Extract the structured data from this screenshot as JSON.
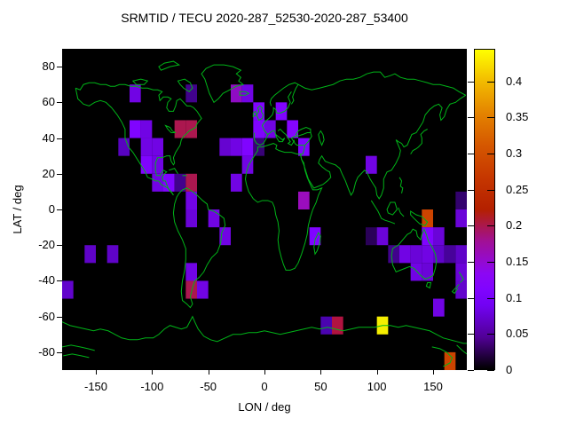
{
  "title": "SRMTID / TECU 2020-287_52530-2020-287_53400",
  "chart_data": {
    "type": "heatmap",
    "title": "SRMTID / TECU 2020-287_52530-2020-287_53400",
    "xlabel": "LON / deg",
    "ylabel": "LAT / deg",
    "xlim": [
      -180,
      180
    ],
    "ylim": [
      -90,
      90
    ],
    "xticks": [
      -150,
      -100,
      -50,
      0,
      50,
      100,
      150
    ],
    "yticks": [
      80,
      60,
      40,
      20,
      0,
      -20,
      -40,
      -60,
      -80
    ],
    "grid": false,
    "legend_position": "colorbar-right",
    "background_color": "#000000",
    "coastline_color": "#00b418",
    "bin_size_deg": 10,
    "colorbar": {
      "min": 0,
      "max": 0.445,
      "ticks": [
        0,
        0.05,
        0.1,
        0.15,
        0.2,
        0.25,
        0.3,
        0.35,
        0.4
      ],
      "tick_labels": [
        "0",
        "0.05",
        "0.1",
        "0.15",
        "0.2",
        "0.25",
        "0.3",
        "0.35",
        "0.4"
      ],
      "palette": "gnuplot pm3d default (black-violet-magenta-red-orange-yellow)",
      "gradient_stops": [
        {
          "at": 0.0,
          "color": "#000000"
        },
        {
          "at": 0.1,
          "color": "#510096"
        },
        {
          "at": 0.2,
          "color": "#7202f3"
        },
        {
          "at": 0.25,
          "color": "#8004ff"
        },
        {
          "at": 0.3,
          "color": "#8c07f3"
        },
        {
          "at": 0.4,
          "color": "#a11096"
        },
        {
          "at": 0.5,
          "color": "#b42000"
        },
        {
          "at": 0.6,
          "color": "#c63700"
        },
        {
          "at": 0.7,
          "color": "#d55700"
        },
        {
          "at": 0.8,
          "color": "#e48300"
        },
        {
          "at": 0.9,
          "color": "#f2ba00"
        },
        {
          "at": 1.0,
          "color": "#ffff00"
        }
      ]
    },
    "cells": [
      {
        "lon": -120,
        "lat": 60,
        "value": 0.1,
        "color": "#7104e4"
      },
      {
        "lon": -70,
        "lat": 60,
        "value": 0.06,
        "color": "#41028c"
      },
      {
        "lon": -30,
        "lat": 60,
        "value": 0.14,
        "color": "#8f0cc4"
      },
      {
        "lon": -20,
        "lat": 60,
        "value": 0.1,
        "color": "#7104e4"
      },
      {
        "lon": -10,
        "lat": 50,
        "value": 0.11,
        "color": "#8004ff"
      },
      {
        "lon": 10,
        "lat": 50,
        "value": 0.11,
        "color": "#8004ff"
      },
      {
        "lon": -120,
        "lat": 40,
        "value": 0.11,
        "color": "#8004ff"
      },
      {
        "lon": -110,
        "lat": 40,
        "value": 0.1,
        "color": "#7104e4"
      },
      {
        "lon": -80,
        "lat": 40,
        "value": 0.2,
        "color": "#ab174f"
      },
      {
        "lon": -70,
        "lat": 40,
        "value": 0.2,
        "color": "#ab174f"
      },
      {
        "lon": -10,
        "lat": 40,
        "value": 0.11,
        "color": "#8004ff"
      },
      {
        "lon": 0,
        "lat": 40,
        "value": 0.1,
        "color": "#7104e4"
      },
      {
        "lon": 20,
        "lat": 40,
        "value": 0.115,
        "color": "#8505ff"
      },
      {
        "lon": -130,
        "lat": 30,
        "value": 0.08,
        "color": "#5803c0"
      },
      {
        "lon": -110,
        "lat": 30,
        "value": 0.1,
        "color": "#7104e4"
      },
      {
        "lon": -100,
        "lat": 30,
        "value": 0.1,
        "color": "#7104e4"
      },
      {
        "lon": -40,
        "lat": 30,
        "value": 0.09,
        "color": "#6604d0"
      },
      {
        "lon": -30,
        "lat": 30,
        "value": 0.1,
        "color": "#7104e4"
      },
      {
        "lon": -20,
        "lat": 30,
        "value": 0.11,
        "color": "#8004ff"
      },
      {
        "lon": -10,
        "lat": 30,
        "value": 0.05,
        "color": "#380277"
      },
      {
        "lon": 30,
        "lat": 30,
        "value": 0.11,
        "color": "#8004ff"
      },
      {
        "lon": -110,
        "lat": 20,
        "value": 0.11,
        "color": "#8004ff"
      },
      {
        "lon": -100,
        "lat": 20,
        "value": 0.1,
        "color": "#7104e4"
      },
      {
        "lon": -20,
        "lat": 20,
        "value": 0.1,
        "color": "#7104e4"
      },
      {
        "lon": 90,
        "lat": 20,
        "value": 0.1,
        "color": "#7104e4"
      },
      {
        "lon": -100,
        "lat": 10,
        "value": 0.1,
        "color": "#7104e4"
      },
      {
        "lon": -90,
        "lat": 10,
        "value": 0.11,
        "color": "#8004ff"
      },
      {
        "lon": -80,
        "lat": 10,
        "value": 0.06,
        "color": "#41028c"
      },
      {
        "lon": -70,
        "lat": 10,
        "value": 0.2,
        "color": "#ab174f"
      },
      {
        "lon": -30,
        "lat": 10,
        "value": 0.1,
        "color": "#7104e4"
      },
      {
        "lon": -70,
        "lat": 0,
        "value": 0.1,
        "color": "#7104e4"
      },
      {
        "lon": 30,
        "lat": 0,
        "value": 0.15,
        "color": "#9b0dbe"
      },
      {
        "lon": 170,
        "lat": 0,
        "value": 0.045,
        "color": "#33026e"
      },
      {
        "lon": -70,
        "lat": -10,
        "value": 0.095,
        "color": "#6a04d8"
      },
      {
        "lon": -50,
        "lat": -10,
        "value": 0.1,
        "color": "#7104e4"
      },
      {
        "lon": 140,
        "lat": -10,
        "value": 0.28,
        "color": "#cc4400"
      },
      {
        "lon": 170,
        "lat": -10,
        "value": 0.095,
        "color": "#6a04d8"
      },
      {
        "lon": -40,
        "lat": -20,
        "value": 0.1,
        "color": "#7104e4"
      },
      {
        "lon": 40,
        "lat": -20,
        "value": 0.11,
        "color": "#8004ff"
      },
      {
        "lon": 90,
        "lat": -20,
        "value": 0.035,
        "color": "#2a0158"
      },
      {
        "lon": 100,
        "lat": -20,
        "value": 0.095,
        "color": "#6a04d8"
      },
      {
        "lon": 140,
        "lat": -20,
        "value": 0.11,
        "color": "#8004ff"
      },
      {
        "lon": 150,
        "lat": -20,
        "value": 0.095,
        "color": "#6a04d8"
      },
      {
        "lon": -160,
        "lat": -30,
        "value": 0.085,
        "color": "#5f03c8"
      },
      {
        "lon": -140,
        "lat": -30,
        "value": 0.085,
        "color": "#5f03c8"
      },
      {
        "lon": 110,
        "lat": -30,
        "value": 0.06,
        "color": "#41028c"
      },
      {
        "lon": 120,
        "lat": -30,
        "value": 0.1,
        "color": "#7104e4"
      },
      {
        "lon": 130,
        "lat": -30,
        "value": 0.095,
        "color": "#6a04d8"
      },
      {
        "lon": 140,
        "lat": -30,
        "value": 0.1,
        "color": "#7104e4"
      },
      {
        "lon": 150,
        "lat": -30,
        "value": 0.085,
        "color": "#5f03c8"
      },
      {
        "lon": 160,
        "lat": -30,
        "value": 0.065,
        "color": "#47029a"
      },
      {
        "lon": 170,
        "lat": -30,
        "value": 0.085,
        "color": "#5f03c8"
      },
      {
        "lon": -70,
        "lat": -40,
        "value": 0.1,
        "color": "#7104e4"
      },
      {
        "lon": 130,
        "lat": -40,
        "value": 0.1,
        "color": "#7104e4"
      },
      {
        "lon": 140,
        "lat": -40,
        "value": 0.095,
        "color": "#6a04d8"
      },
      {
        "lon": 170,
        "lat": -40,
        "value": 0.095,
        "color": "#6a04d8"
      },
      {
        "lon": -180,
        "lat": -50,
        "value": 0.09,
        "color": "#6204cc"
      },
      {
        "lon": -70,
        "lat": -50,
        "value": 0.2,
        "color": "#ab174f"
      },
      {
        "lon": -60,
        "lat": -50,
        "value": 0.1,
        "color": "#7104e4"
      },
      {
        "lon": 170,
        "lat": -50,
        "value": 0.09,
        "color": "#6204cc"
      },
      {
        "lon": 150,
        "lat": -60,
        "value": 0.1,
        "color": "#7104e4"
      },
      {
        "lon": 50,
        "lat": -70,
        "value": 0.07,
        "color": "#4a03b0"
      },
      {
        "lon": 60,
        "lat": -70,
        "value": 0.21,
        "color": "#b01340"
      },
      {
        "lon": 100,
        "lat": -70,
        "value": 0.44,
        "color": "#f5ee00"
      },
      {
        "lon": 160,
        "lat": -90,
        "value": 0.28,
        "color": "#cc4400"
      }
    ]
  }
}
